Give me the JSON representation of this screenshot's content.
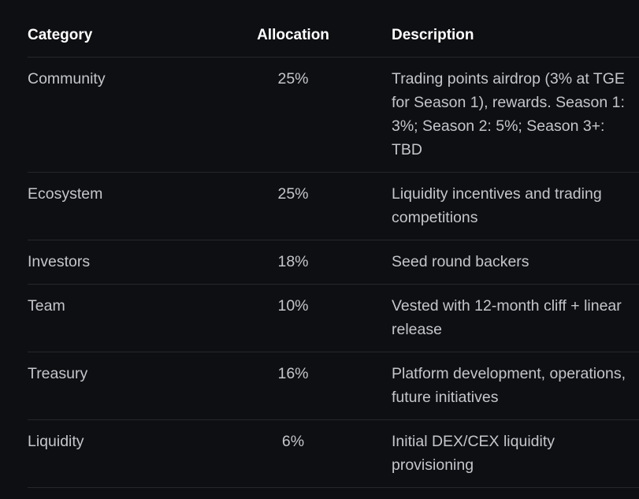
{
  "table": {
    "header": [
      "Category",
      "Allocation",
      "Description"
    ],
    "rows": [
      [
        "Community",
        "25%",
        "Trading points airdrop (3% at TGE for Season 1), rewards. Season 1: 3%; Season 2: 5%; Season 3+: TBD"
      ],
      [
        "Ecosystem",
        "25%",
        "Liquidity incentives and trading competitions"
      ],
      [
        "Investors",
        "18%",
        "Seed round backers"
      ],
      [
        "Team",
        "10%",
        "Vested with 12-month cliff + linear release"
      ],
      [
        "Treasury",
        "16%",
        "Platform development, operations, future initiatives"
      ],
      [
        "Liquidity",
        "6%",
        "Initial DEX/CEX liquidity provisioning"
      ]
    ]
  }
}
